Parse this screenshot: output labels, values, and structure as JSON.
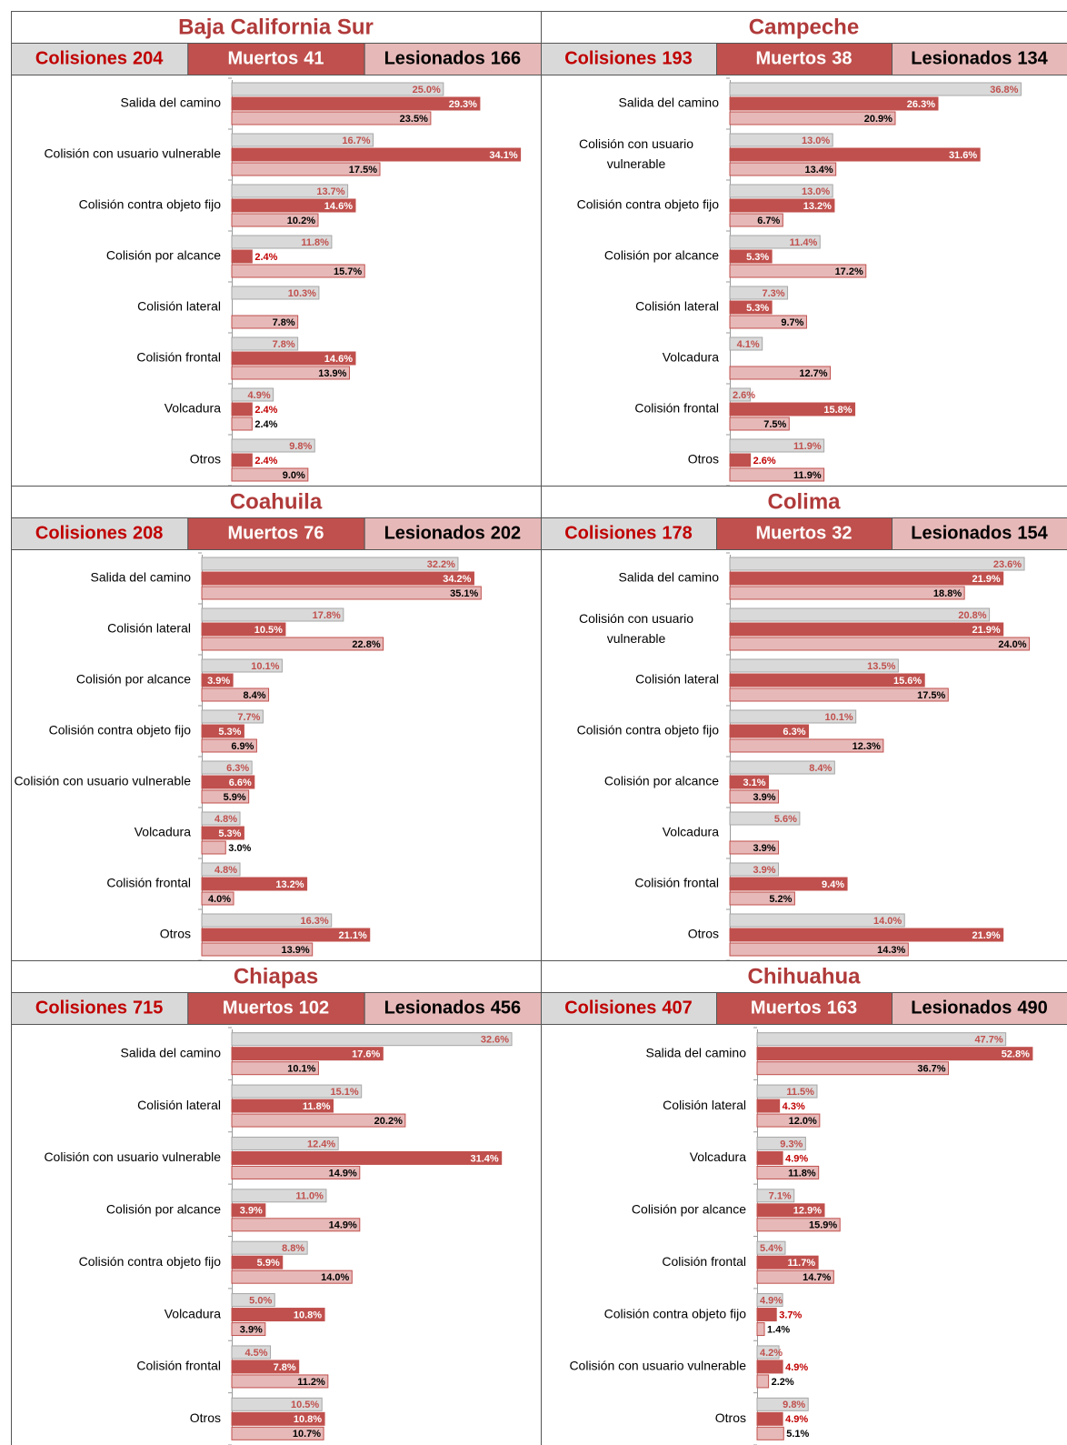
{
  "chart_data": [
    {
      "type": "bar",
      "title": "Baja California Sur",
      "categories": [
        "Salida del camino",
        "Colisión con usuario vulnerable",
        "Colisión contra objeto fijo",
        "Colisión por alcance",
        "Colisión lateral",
        "Colisión frontal",
        "Volcadura",
        "Otros"
      ],
      "xlim": [
        0,
        35
      ],
      "series": [
        {
          "name": "Colisiones",
          "total": 204,
          "color": "#d9d9d9",
          "label_color": "#c0504d",
          "values": [
            25.0,
            16.7,
            13.7,
            11.8,
            10.3,
            7.8,
            4.9,
            9.8
          ],
          "value_labels": [
            "25.0%",
            "16.7%",
            "13.7%",
            "11.8%",
            "10.3%",
            "7.8%",
            "4.9%",
            "9.8%"
          ]
        },
        {
          "name": "Muertos",
          "total": 41,
          "color": "#c0504d",
          "label_color": "#c00000",
          "values": [
            29.3,
            34.1,
            14.6,
            2.4,
            null,
            14.6,
            2.4,
            2.4
          ],
          "value_labels": [
            "29.3%",
            "34.1%",
            "14.6%",
            "2.4%",
            null,
            "14.6%",
            "2.4%",
            "2.4%"
          ]
        },
        {
          "name": "Lesionados",
          "total": 166,
          "color": "#e6b9b8",
          "label_color": "#000000",
          "values": [
            23.5,
            17.5,
            10.2,
            15.7,
            7.8,
            13.9,
            2.4,
            9.0
          ],
          "value_labels": [
            "23.5%",
            "17.5%",
            "10.2%",
            "15.7%",
            "7.8%",
            "13.9%",
            "2.4%",
            "9.0%"
          ]
        }
      ]
    },
    {
      "type": "bar",
      "title": "Campeche",
      "categories": [
        "Salida del camino",
        "Colisión con usuario vulnerable",
        "Colisión contra objeto fijo",
        "Colisión por alcance",
        "Colisión lateral",
        "Volcadura",
        "Colisión frontal",
        "Otros"
      ],
      "xlim": [
        0,
        41
      ],
      "series": [
        {
          "name": "Colisiones",
          "total": 193,
          "color": "#d9d9d9",
          "label_color": "#c0504d",
          "values": [
            36.8,
            13.0,
            13.0,
            11.4,
            7.3,
            4.1,
            2.6,
            11.9
          ],
          "value_labels": [
            "36.8%",
            "13.0%",
            "13.0%",
            "11.4%",
            "7.3%",
            "4.1%",
            "2.6%",
            "11.9%"
          ]
        },
        {
          "name": "Muertos",
          "total": 38,
          "color": "#c0504d",
          "label_color": "#c00000",
          "values": [
            26.3,
            31.6,
            13.2,
            5.3,
            5.3,
            null,
            15.8,
            2.6
          ],
          "value_labels": [
            "26.3%",
            "31.6%",
            "13.2%",
            "5.3%",
            "5.3%",
            null,
            "15.8%",
            "2.6%"
          ]
        },
        {
          "name": "Lesionados",
          "total": 134,
          "color": "#e6b9b8",
          "label_color": "#000000",
          "values": [
            20.9,
            13.4,
            6.7,
            17.2,
            9.7,
            12.7,
            7.5,
            11.9
          ],
          "value_labels": [
            "20.9%",
            "13.4%",
            "6.7%",
            "17.2%",
            "9.7%",
            "12.7%",
            "7.5%",
            "11.9%"
          ]
        }
      ]
    },
    {
      "type": "bar",
      "title": "Coahuila",
      "categories": [
        "Salida del camino",
        "Colisión lateral",
        "Colisión por alcance",
        "Colisión contra objeto fijo",
        "Colisión con usuario vulnerable",
        "Volcadura",
        "Colisión frontal",
        "Otros"
      ],
      "xlim": [
        0,
        41
      ],
      "series": [
        {
          "name": "Colisiones",
          "total": 208,
          "color": "#d9d9d9",
          "label_color": "#c0504d",
          "values": [
            32.2,
            17.8,
            10.1,
            7.7,
            6.3,
            4.8,
            4.8,
            16.3
          ],
          "value_labels": [
            "32.2%",
            "17.8%",
            "10.1%",
            "7.7%",
            "6.3%",
            "4.8%",
            "4.8%",
            "16.3%"
          ]
        },
        {
          "name": "Muertos",
          "total": 76,
          "color": "#c0504d",
          "label_color": "#c00000",
          "values": [
            34.2,
            10.5,
            3.9,
            5.3,
            6.6,
            5.3,
            13.2,
            21.1
          ],
          "value_labels": [
            "34.2%",
            "10.5%",
            "3.9%",
            "5.3%",
            "6.6%",
            "5.3%",
            "13.2%",
            "21.1%"
          ]
        },
        {
          "name": "Lesionados",
          "total": 202,
          "color": "#e6b9b8",
          "label_color": "#000000",
          "values": [
            35.1,
            22.8,
            8.4,
            6.9,
            5.9,
            3.0,
            4.0,
            13.9
          ],
          "value_labels": [
            "35.1%",
            "22.8%",
            "8.4%",
            "6.9%",
            "5.9%",
            "3.0%",
            "4.0%",
            "13.9%"
          ]
        }
      ]
    },
    {
      "type": "bar",
      "title": "Colima",
      "categories": [
        "Salida del camino",
        "Colisión con usuario vulnerable",
        "Colisión lateral",
        "Colisión contra objeto fijo",
        "Colisión por alcance",
        "Volcadura",
        "Colisión frontal",
        "Otros"
      ],
      "xlim": [
        0,
        26
      ],
      "series": [
        {
          "name": "Colisiones",
          "total": 178,
          "color": "#d9d9d9",
          "label_color": "#c0504d",
          "values": [
            23.6,
            20.8,
            13.5,
            10.1,
            8.4,
            5.6,
            3.9,
            14.0
          ],
          "value_labels": [
            "23.6%",
            "20.8%",
            "13.5%",
            "10.1%",
            "8.4%",
            "5.6%",
            "3.9%",
            "14.0%"
          ]
        },
        {
          "name": "Muertos",
          "total": 32,
          "color": "#c0504d",
          "label_color": "#c00000",
          "values": [
            21.9,
            21.9,
            15.6,
            6.3,
            3.1,
            null,
            9.4,
            21.9
          ],
          "value_labels": [
            "21.9%",
            "21.9%",
            "15.6%",
            "6.3%",
            "3.1%",
            null,
            "9.4%",
            "21.9%"
          ]
        },
        {
          "name": "Lesionados",
          "total": 154,
          "color": "#e6b9b8",
          "label_color": "#000000",
          "values": [
            18.8,
            24.0,
            17.5,
            12.3,
            3.9,
            3.9,
            5.2,
            14.3
          ],
          "value_labels": [
            "18.8%",
            "24.0%",
            "17.5%",
            "12.3%",
            "3.9%",
            "3.9%",
            "5.2%",
            "14.3%"
          ]
        }
      ]
    },
    {
      "type": "bar",
      "title": "Chiapas",
      "categories": [
        "Salida del camino",
        "Colisión lateral",
        "Colisión con usuario vulnerable",
        "Colisión por alcance",
        "Colisión contra objeto fijo",
        "Volcadura",
        "Colisión frontal",
        "Otros"
      ],
      "xlim": [
        0,
        34.5
      ],
      "series": [
        {
          "name": "Colisiones",
          "total": 715,
          "color": "#d9d9d9",
          "label_color": "#c0504d",
          "values": [
            32.6,
            15.1,
            12.4,
            11.0,
            8.8,
            5.0,
            4.5,
            10.5
          ],
          "value_labels": [
            "32.6%",
            "15.1%",
            "12.4%",
            "11.0%",
            "8.8%",
            "5.0%",
            "4.5%",
            "10.5%"
          ]
        },
        {
          "name": "Muertos",
          "total": 102,
          "color": "#c0504d",
          "label_color": "#c00000",
          "values": [
            17.6,
            11.8,
            31.4,
            3.9,
            5.9,
            10.8,
            7.8,
            10.8
          ],
          "value_labels": [
            "17.6%",
            "11.8%",
            "31.4%",
            "3.9%",
            "5.9%",
            "10.8%",
            "7.8%",
            "10.8%"
          ]
        },
        {
          "name": "Lesionados",
          "total": 456,
          "color": "#e6b9b8",
          "label_color": "#000000",
          "values": [
            10.1,
            20.2,
            14.9,
            14.9,
            14.0,
            3.9,
            11.2,
            10.7
          ],
          "value_labels": [
            "10.1%",
            "20.2%",
            "14.9%",
            "14.9%",
            "14.0%",
            "3.9%",
            "11.2%",
            "10.7%"
          ]
        }
      ]
    },
    {
      "type": "bar",
      "title": "Chihuahua",
      "categories": [
        "Salida del camino",
        "Colisión lateral",
        "Volcadura",
        "Colisión por alcance",
        "Colisión frontal",
        "Colisión contra objeto fijo",
        "Colisión con usuario vulnerable",
        "Otros"
      ],
      "xlim": [
        0,
        57
      ],
      "series": [
        {
          "name": "Colisiones",
          "total": 407,
          "color": "#d9d9d9",
          "label_color": "#c0504d",
          "values": [
            47.7,
            11.5,
            9.3,
            7.1,
            5.4,
            4.9,
            4.2,
            9.8
          ],
          "value_labels": [
            "47.7%",
            "11.5%",
            "9.3%",
            "7.1%",
            "5.4%",
            "4.9%",
            "4.2%",
            "9.8%"
          ]
        },
        {
          "name": "Muertos",
          "total": 163,
          "color": "#c0504d",
          "label_color": "#c00000",
          "values": [
            52.8,
            4.3,
            4.9,
            12.9,
            11.7,
            3.7,
            4.9,
            4.9
          ],
          "value_labels": [
            "52.8%",
            "4.3%",
            "4.9%",
            "12.9%",
            "11.7%",
            "3.7%",
            "4.9%",
            "4.9%"
          ]
        },
        {
          "name": "Lesionados",
          "total": 490,
          "color": "#e6b9b8",
          "label_color": "#000000",
          "values": [
            36.7,
            12.0,
            11.8,
            15.9,
            14.7,
            1.4,
            2.2,
            5.1
          ],
          "value_labels": [
            "36.7%",
            "12.0%",
            "11.8%",
            "15.9%",
            "14.7%",
            "1.4%",
            "2.2%",
            "5.1%"
          ]
        }
      ]
    }
  ]
}
